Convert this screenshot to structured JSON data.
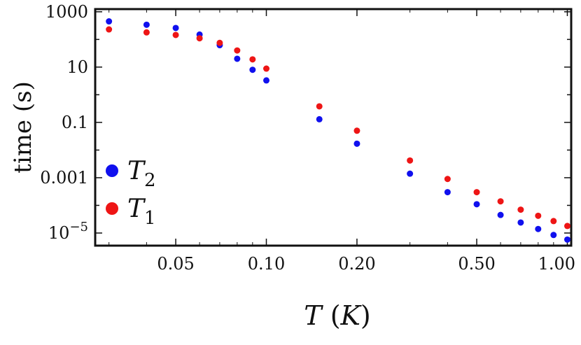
{
  "chart_data": {
    "type": "scatter",
    "title": "",
    "xlabel": "T (K)",
    "xlabel_parts": {
      "var": "T",
      "unit": "K"
    },
    "ylabel": "time (s)",
    "xscale": "log",
    "yscale": "log",
    "xlim": [
      0.027,
      1.03
    ],
    "ylim": [
      3.5e-06,
      1250
    ],
    "grid": false,
    "legend_position": "bottom-left",
    "x_ticks": [
      {
        "value": 0.05,
        "label": "0.05"
      },
      {
        "value": 0.1,
        "label": "0.10"
      },
      {
        "value": 0.2,
        "label": "0.20"
      },
      {
        "value": 0.5,
        "label": "0.50"
      },
      {
        "value": 1.0,
        "label": "1.00"
      }
    ],
    "y_ticks": [
      {
        "value": 1000,
        "label": "1000"
      },
      {
        "value": 10,
        "label": "10"
      },
      {
        "value": 0.1,
        "label": "0.1"
      },
      {
        "value": 0.001,
        "label": "0.001"
      },
      {
        "value": 1e-05,
        "label": "10",
        "exponent": "−5"
      }
    ],
    "series": [
      {
        "name": "T2",
        "legend_symbol": "T",
        "legend_subscript": "2",
        "color": "#1010ee",
        "points": [
          [
            0.03,
            450
          ],
          [
            0.04,
            340
          ],
          [
            0.05,
            260
          ],
          [
            0.06,
            150
          ],
          [
            0.07,
            62
          ],
          [
            0.08,
            20
          ],
          [
            0.09,
            8
          ],
          [
            0.1,
            3.3
          ],
          [
            0.15,
            0.13
          ],
          [
            0.2,
            0.017
          ],
          [
            0.3,
            0.0014
          ],
          [
            0.4,
            0.0003
          ],
          [
            0.5,
            0.00011
          ],
          [
            0.6,
            4.5e-05
          ],
          [
            0.7,
            2.4e-05
          ],
          [
            0.8,
            1.4e-05
          ],
          [
            0.9,
            8.5e-06
          ],
          [
            1.0,
            5.8e-06
          ]
        ]
      },
      {
        "name": "T1",
        "legend_symbol": "T",
        "legend_subscript": "1",
        "color": "#ee1515",
        "points": [
          [
            0.03,
            230
          ],
          [
            0.04,
            180
          ],
          [
            0.05,
            145
          ],
          [
            0.06,
            110
          ],
          [
            0.07,
            75
          ],
          [
            0.08,
            40
          ],
          [
            0.09,
            19
          ],
          [
            0.1,
            8.8
          ],
          [
            0.15,
            0.38
          ],
          [
            0.2,
            0.05
          ],
          [
            0.3,
            0.0042
          ],
          [
            0.4,
            0.0009
          ],
          [
            0.5,
            0.0003
          ],
          [
            0.6,
            0.00014
          ],
          [
            0.7,
            7e-05
          ],
          [
            0.8,
            4.2e-05
          ],
          [
            0.9,
            2.7e-05
          ],
          [
            1.0,
            1.8e-05
          ]
        ]
      }
    ]
  }
}
